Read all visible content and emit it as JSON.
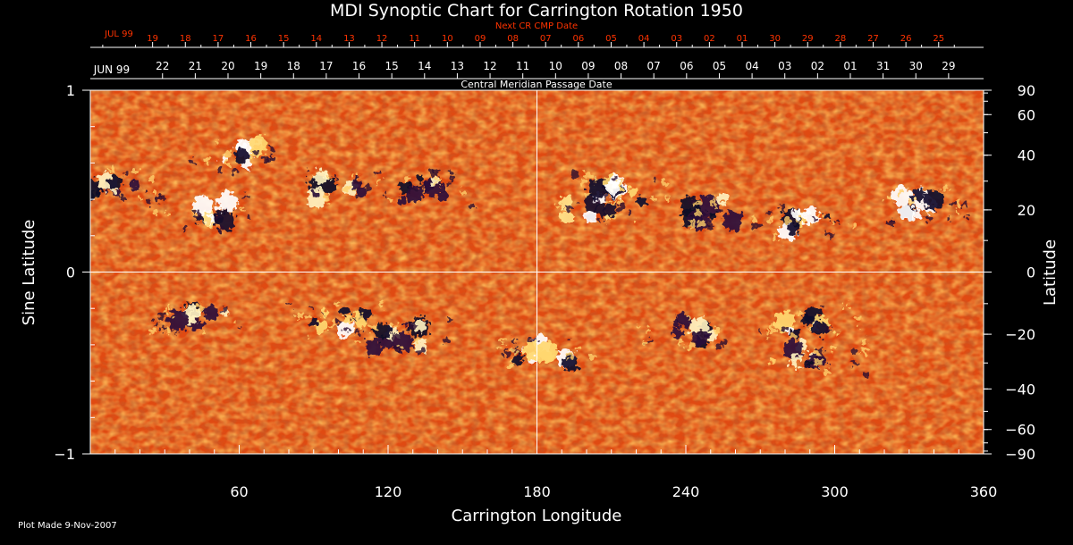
{
  "title": "MDI Synoptic Chart for Carrington Rotation 1950",
  "plot_made": "Plot Made  9-Nov-2007",
  "colors": {
    "background": "#000000",
    "axes": "#ffffff",
    "next_cr_red": "#ff3300",
    "map_base": "#e04a12"
  },
  "top_axes": {
    "next_cr": {
      "label": "Next CR CMP Date",
      "month_label": "JUL 99",
      "ticks": [
        {
          "lon": 25.1,
          "label": "19"
        },
        {
          "lon": 38.3,
          "label": "18"
        },
        {
          "lon": 51.5,
          "label": "17"
        },
        {
          "lon": 64.7,
          "label": "16"
        },
        {
          "lon": 77.9,
          "label": "15"
        },
        {
          "lon": 91.1,
          "label": "14"
        },
        {
          "lon": 104.3,
          "label": "13"
        },
        {
          "lon": 117.5,
          "label": "12"
        },
        {
          "lon": 130.7,
          "label": "11"
        },
        {
          "lon": 143.9,
          "label": "10"
        },
        {
          "lon": 157.1,
          "label": "09"
        },
        {
          "lon": 170.3,
          "label": "08"
        },
        {
          "lon": 183.5,
          "label": "07"
        },
        {
          "lon": 196.7,
          "label": "06"
        },
        {
          "lon": 209.9,
          "label": "05"
        },
        {
          "lon": 223.1,
          "label": "04"
        },
        {
          "lon": 236.3,
          "label": "03"
        },
        {
          "lon": 249.5,
          "label": "02"
        },
        {
          "lon": 262.7,
          "label": "01"
        },
        {
          "lon": 275.9,
          "label": "30"
        },
        {
          "lon": 289.1,
          "label": "29"
        },
        {
          "lon": 302.3,
          "label": "28"
        },
        {
          "lon": 315.5,
          "label": "27"
        },
        {
          "lon": 328.7,
          "label": "26"
        },
        {
          "lon": 341.9,
          "label": "25"
        }
      ]
    },
    "cmp": {
      "label": "Central Meridian Passage Date",
      "month_label": "JUN 99",
      "ticks": [
        {
          "lon": 29.1,
          "label": "22"
        },
        {
          "lon": 42.3,
          "label": "21"
        },
        {
          "lon": 55.5,
          "label": "20"
        },
        {
          "lon": 68.7,
          "label": "19"
        },
        {
          "lon": 81.9,
          "label": "18"
        },
        {
          "lon": 95.1,
          "label": "17"
        },
        {
          "lon": 108.3,
          "label": "16"
        },
        {
          "lon": 121.5,
          "label": "15"
        },
        {
          "lon": 134.7,
          "label": "14"
        },
        {
          "lon": 147.9,
          "label": "13"
        },
        {
          "lon": 161.1,
          "label": "12"
        },
        {
          "lon": 174.3,
          "label": "11"
        },
        {
          "lon": 187.5,
          "label": "10"
        },
        {
          "lon": 200.7,
          "label": "09"
        },
        {
          "lon": 213.9,
          "label": "08"
        },
        {
          "lon": 227.1,
          "label": "07"
        },
        {
          "lon": 240.3,
          "label": "06"
        },
        {
          "lon": 253.5,
          "label": "05"
        },
        {
          "lon": 266.7,
          "label": "04"
        },
        {
          "lon": 279.9,
          "label": "03"
        },
        {
          "lon": 293.1,
          "label": "02"
        },
        {
          "lon": 306.3,
          "label": "01"
        },
        {
          "lon": 319.5,
          "label": "31"
        },
        {
          "lon": 332.7,
          "label": "30"
        },
        {
          "lon": 345.9,
          "label": "29"
        }
      ]
    }
  },
  "chart_data": {
    "type": "heatmap",
    "title": "MDI Synoptic Chart for Carrington Rotation 1950",
    "xlabel": "Carrington Longitude",
    "ylabel": "Sine Latitude",
    "ylabel_right": "Latitude",
    "xlim": [
      0,
      360
    ],
    "ylim": [
      -1,
      1
    ],
    "x_ticks": [
      60,
      120,
      180,
      240,
      300,
      360
    ],
    "x_tick_labels": [
      "60",
      "120",
      "180",
      "240",
      "300",
      "360"
    ],
    "y_ticks": [
      -1,
      0,
      1
    ],
    "y_tick_labels": [
      "−1",
      "0",
      "1"
    ],
    "right_ticks_deg": [
      90,
      60,
      40,
      20,
      0,
      -20,
      -40,
      -60,
      -90
    ],
    "right_tick_labels": [
      "90",
      "60",
      "40",
      "20",
      "0",
      "−20",
      "−40",
      "−60",
      "−90"
    ],
    "reference_lines": {
      "x": 180,
      "y": 0
    },
    "grid": false,
    "active_regions": [
      {
        "lon": 60,
        "sinlat": 0.65,
        "polarity": "mixed"
      },
      {
        "lon": 100,
        "sinlat": 0.47,
        "polarity": "negative"
      },
      {
        "lon": 135,
        "sinlat": 0.45,
        "polarity": "negative"
      },
      {
        "lon": 10,
        "sinlat": 0.47,
        "polarity": "negative"
      },
      {
        "lon": 45,
        "sinlat": 0.33,
        "polarity": "positive"
      },
      {
        "lon": 200,
        "sinlat": 0.35,
        "polarity": "positive"
      },
      {
        "lon": 215,
        "sinlat": 0.45,
        "polarity": "mixed"
      },
      {
        "lon": 250,
        "sinlat": 0.34,
        "polarity": "negative"
      },
      {
        "lon": 288,
        "sinlat": 0.27,
        "polarity": "mixed"
      },
      {
        "lon": 335,
        "sinlat": 0.37,
        "polarity": "mixed"
      },
      {
        "lon": 45,
        "sinlat": -0.25,
        "polarity": "negative"
      },
      {
        "lon": 100,
        "sinlat": -0.27,
        "polarity": "mixed"
      },
      {
        "lon": 125,
        "sinlat": -0.35,
        "polarity": "negative"
      },
      {
        "lon": 183,
        "sinlat": -0.45,
        "polarity": "mixed"
      },
      {
        "lon": 240,
        "sinlat": -0.33,
        "polarity": "negative"
      },
      {
        "lon": 290,
        "sinlat": -0.28,
        "polarity": "mixed"
      },
      {
        "lon": 293,
        "sinlat": -0.47,
        "polarity": "negative"
      }
    ]
  }
}
